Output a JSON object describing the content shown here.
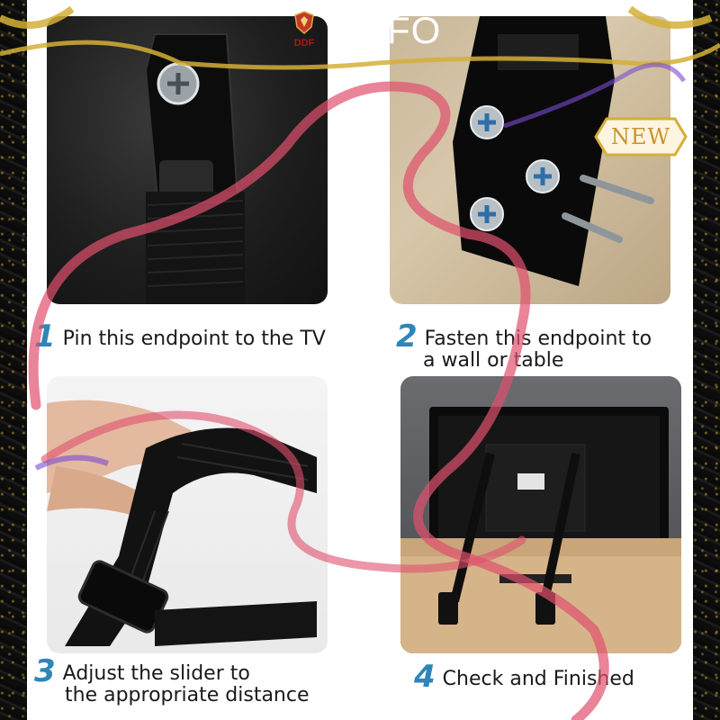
{
  "logo": {
    "text": "DDF",
    "icon": "shield-crest-icon"
  },
  "brand": {
    "text": "FO"
  },
  "badge": {
    "text": "NEW"
  },
  "steps": [
    {
      "number": "1",
      "lines": [
        "Pin this endpoint to the TV"
      ]
    },
    {
      "number": "2",
      "lines": [
        "Fasten this endpoint to",
        "a wall or table"
      ]
    },
    {
      "number": "3",
      "lines": [
        "Adjust the slider to",
        "the appropriate distance"
      ]
    },
    {
      "number": "4",
      "lines": [
        "Check and Finished"
      ]
    }
  ],
  "colors": {
    "step_number": "#2e86b8",
    "ribbon": "#e0506e",
    "gold": "#d4af37",
    "logo_red": "#b31515"
  },
  "images": [
    {
      "icon": "strap-bracket-photo"
    },
    {
      "icon": "wall-screw-bracket-photo"
    },
    {
      "icon": "hand-adjusting-strap-photo"
    },
    {
      "icon": "tv-with-straps-photo"
    }
  ]
}
